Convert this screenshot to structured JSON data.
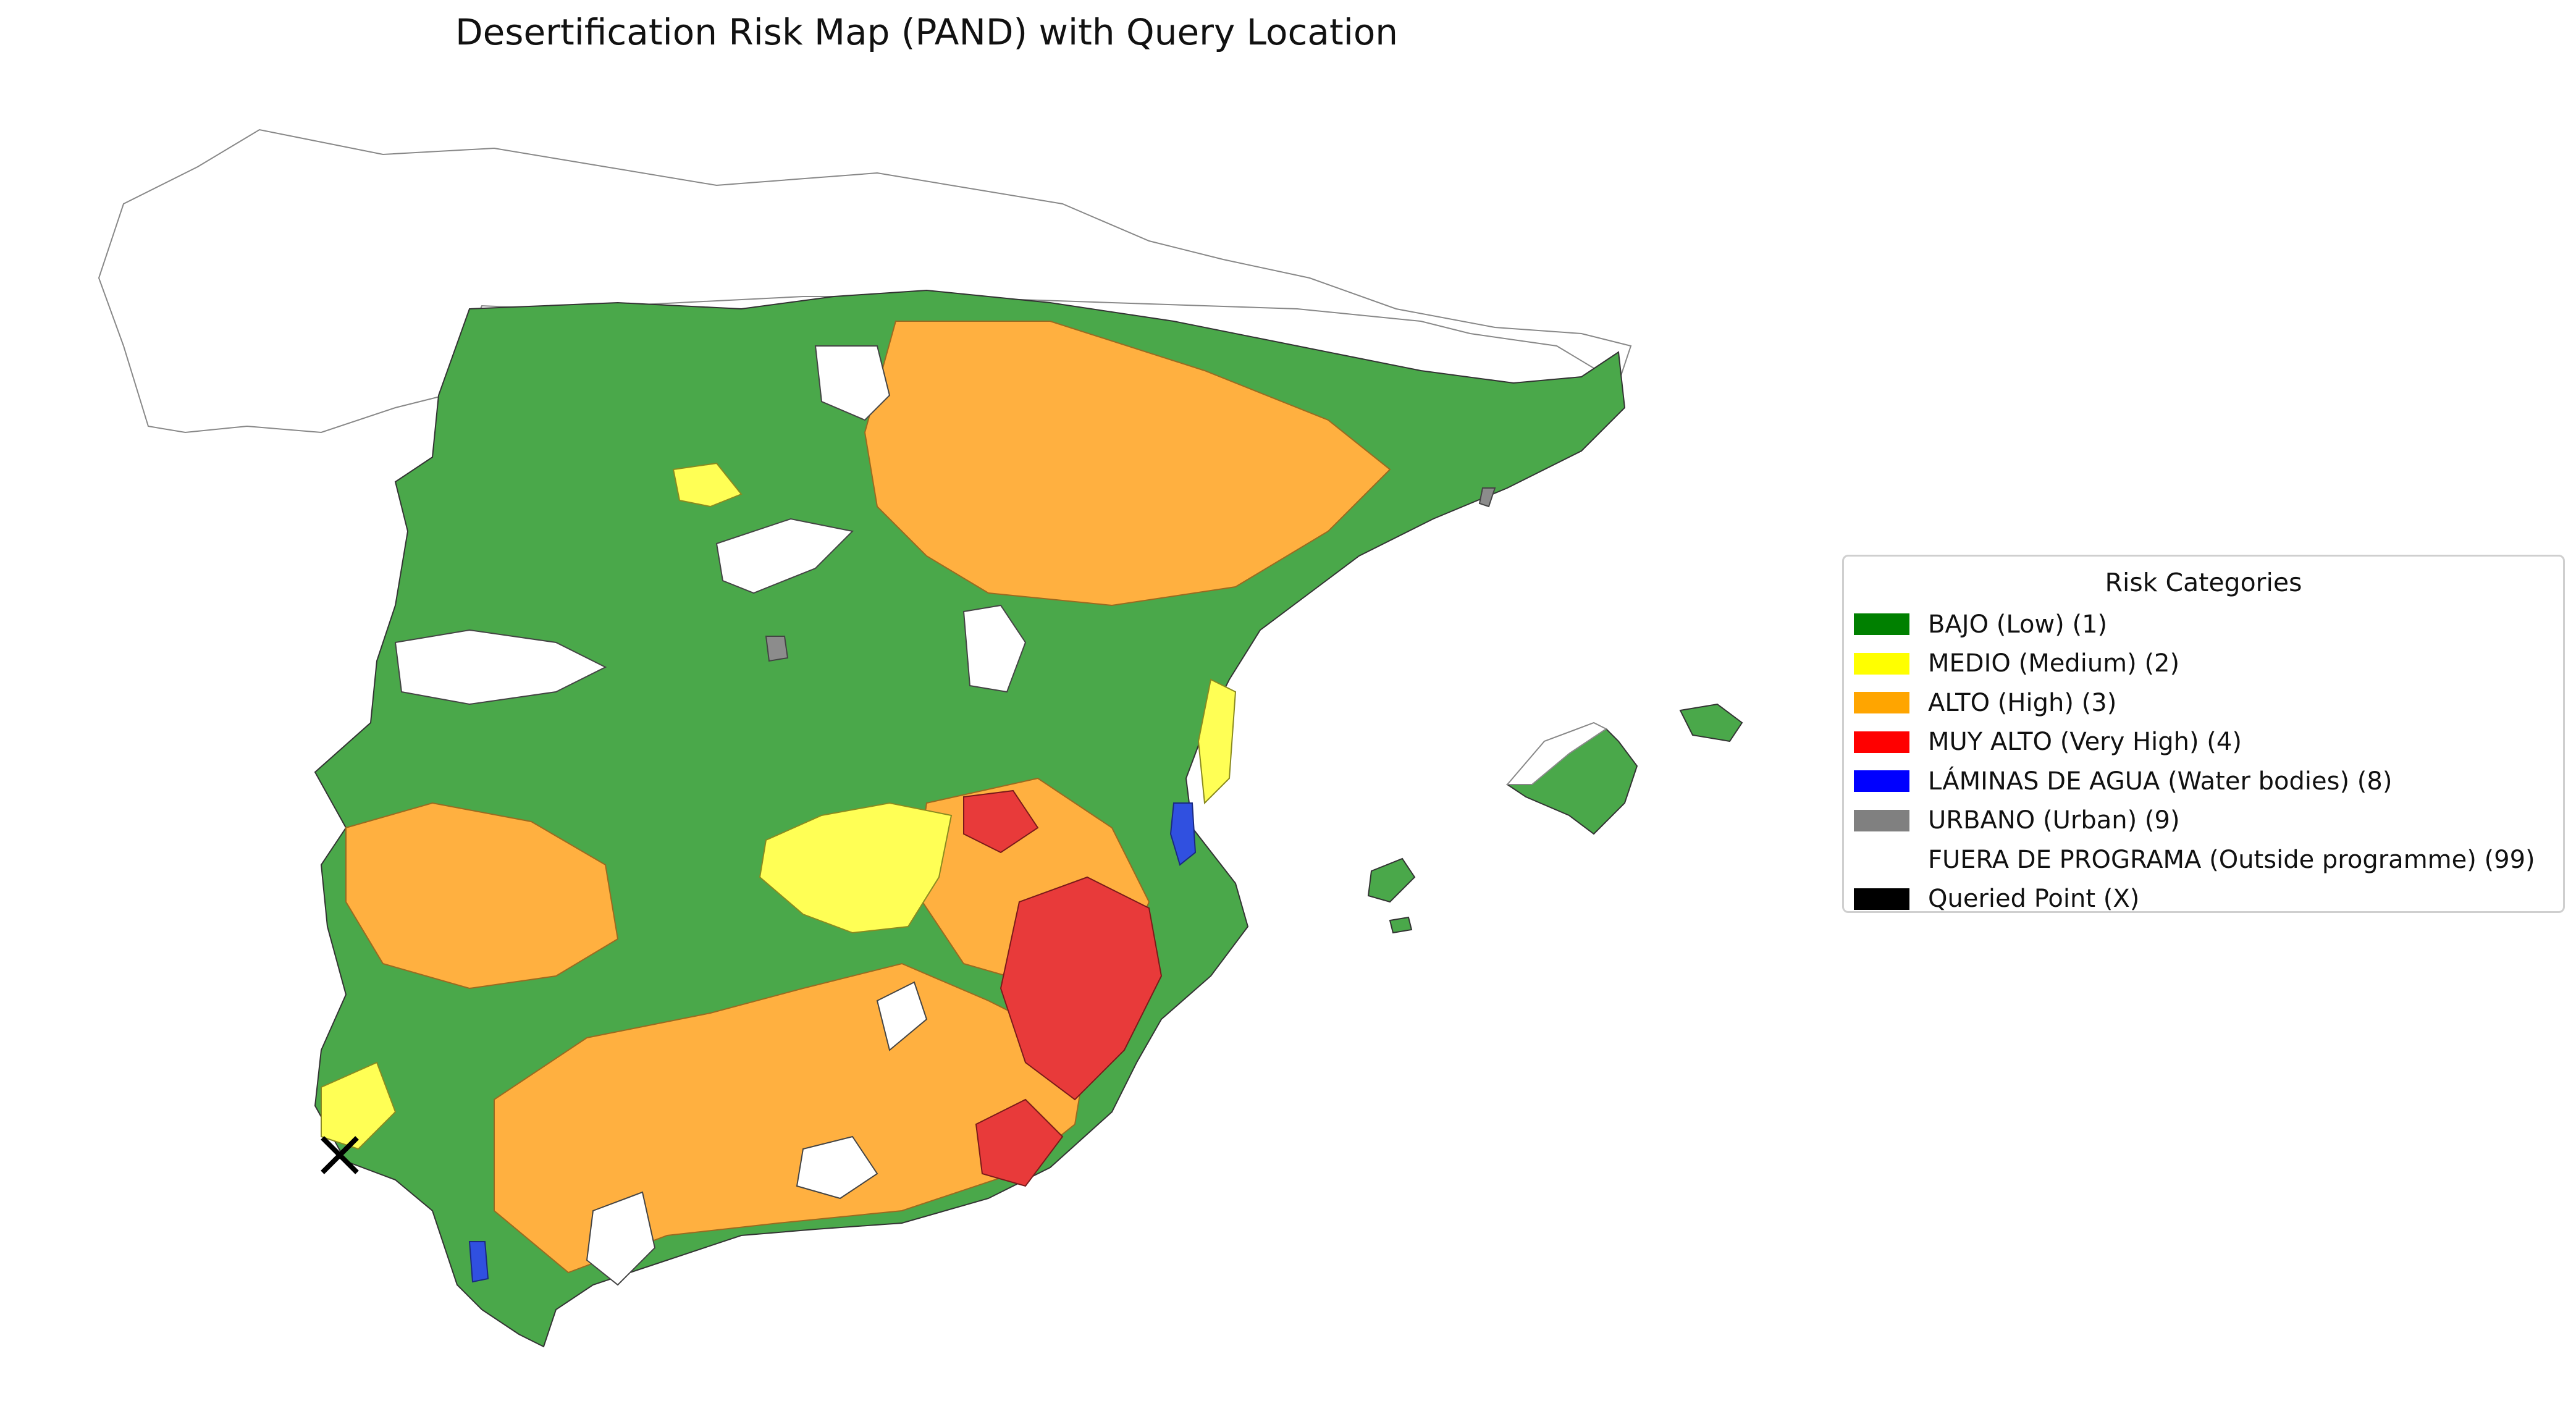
{
  "title": "Desertification Risk Map (PAND) with Query Location",
  "legend": {
    "title": "Risk Categories",
    "items": [
      {
        "label": "BAJO (Low) (1)",
        "color": "#008000"
      },
      {
        "label": "MEDIO (Medium) (2)",
        "color": "#ffff00"
      },
      {
        "label": "ALTO (High) (3)",
        "color": "#ffa500"
      },
      {
        "label": "MUY ALTO (Very High) (4)",
        "color": "#ff0000"
      },
      {
        "label": "LÁMINAS DE AGUA (Water bodies) (8)",
        "color": "#0000ff"
      },
      {
        "label": "URBANO (Urban) (9)",
        "color": "#808080"
      },
      {
        "label": "FUERA DE PROGRAMA (Outside programme) (99)",
        "color": "#ffffff"
      },
      {
        "label": "Queried Point (X)",
        "color": "#000000"
      }
    ]
  },
  "map_fill_colors": {
    "low": "#4aa84a",
    "medium": "#ffff55",
    "high": "#ffb040",
    "very_high": "#e83a3a",
    "water": "#3050e0",
    "urban": "#8c8c8c",
    "outside": "#ffffff",
    "outline": "#888888"
  },
  "query_point": {
    "marker": "x-icon",
    "color": "#000000"
  }
}
